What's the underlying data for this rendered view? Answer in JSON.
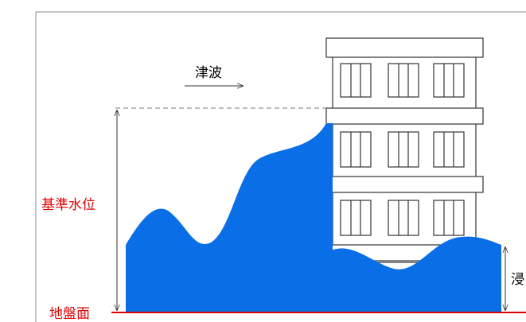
{
  "labels": {
    "tsunami": "津波",
    "reference_water_level": "基準水位",
    "ground_surface": "地盤面",
    "inundation_depth": "浸"
  }
}
